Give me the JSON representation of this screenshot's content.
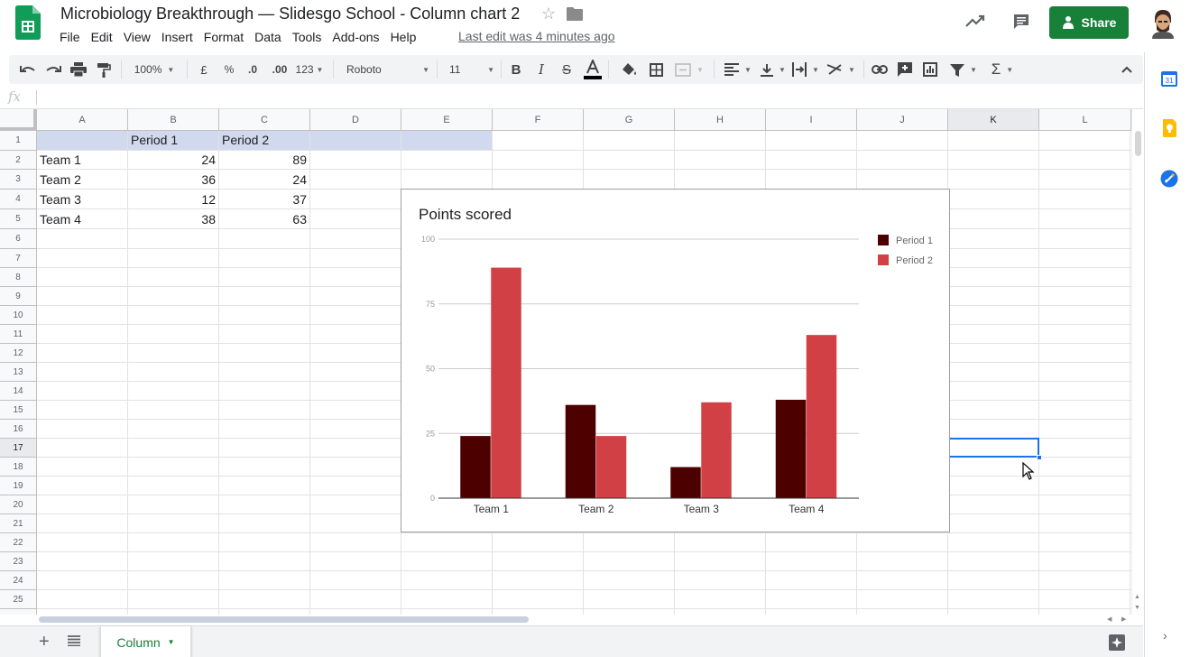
{
  "header": {
    "title": "Microbiology Breakthrough — Slidesgo School - Column chart 2",
    "last_edit": "Last edit was 4 minutes ago",
    "share_label": "Share",
    "menu": [
      "File",
      "Edit",
      "View",
      "Insert",
      "Format",
      "Data",
      "Tools",
      "Add-ons",
      "Help"
    ]
  },
  "toolbar": {
    "zoom": "100%",
    "currency": "£",
    "percent": "%",
    "decrease_decimals": ".0",
    "increase_decimals": ".00",
    "more_formats": "123",
    "font": "Roboto",
    "font_size": "11"
  },
  "formula_bar": {
    "fx": "fx",
    "value": ""
  },
  "grid": {
    "columns": [
      "A",
      "B",
      "C",
      "D",
      "E",
      "F",
      "G",
      "H",
      "I",
      "J",
      "K",
      "L"
    ],
    "selected_column": "K",
    "rows": [
      "1",
      "2",
      "3",
      "4",
      "5",
      "6",
      "7",
      "8",
      "9",
      "10",
      "11",
      "12",
      "13",
      "14",
      "15",
      "16",
      "17",
      "18",
      "19",
      "20",
      "21",
      "22",
      "23",
      "24",
      "25"
    ],
    "selected_row": "17",
    "cells": {
      "b1": "Period 1",
      "c1": "Period 2",
      "a2": "Team 1",
      "b2": "24",
      "c2": "89",
      "a3": "Team 2",
      "b3": "36",
      "c3": "24",
      "a4": "Team 3",
      "b4": "12",
      "c4": "37",
      "a5": "Team 4",
      "b5": "38",
      "c5": "63"
    }
  },
  "chart_data": {
    "type": "bar",
    "title": "Points scored",
    "categories": [
      "Team 1",
      "Team 2",
      "Team 3",
      "Team 4"
    ],
    "series": [
      {
        "name": "Period 1",
        "values": [
          24,
          36,
          12,
          38
        ],
        "color": "#4d0000"
      },
      {
        "name": "Period 2",
        "values": [
          89,
          24,
          37,
          63
        ],
        "color": "#d04044"
      }
    ],
    "yticks": [
      0,
      25,
      50,
      75,
      100
    ],
    "ylim": [
      0,
      100
    ],
    "grid": true,
    "legend": "right"
  },
  "sheets": {
    "active": "Column"
  },
  "colors": {
    "accent": "#188038",
    "selection": "#1a73e8",
    "header_fill": "#d0d9ee"
  }
}
